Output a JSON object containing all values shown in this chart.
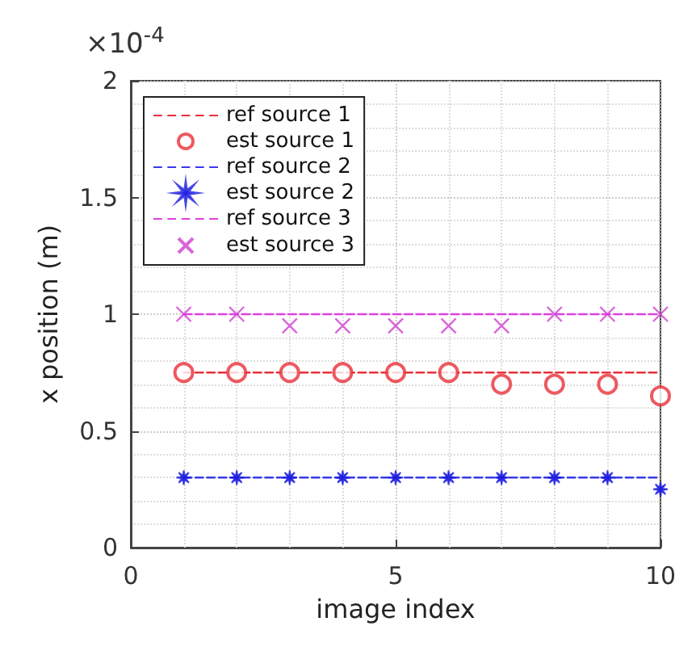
{
  "chart_data": {
    "type": "line",
    "xlabel": "image index",
    "ylabel": "x position (m)",
    "annotations": [
      "×10$^{-4}$"
    ],
    "xlim": [
      0,
      10
    ],
    "xticks": [
      0,
      5,
      10
    ],
    "ylim": [
      0,
      2
    ],
    "yticks": [
      0,
      0.5,
      1,
      1.5,
      2
    ],
    "grid": true,
    "legend": "top left",
    "series": [
      {
        "name": "ref source 1",
        "line_style": "dashed",
        "marker": "none",
        "color": "#e8303a",
        "x": [
          1,
          10
        ],
        "values": [
          0.75,
          0.75
        ]
      },
      {
        "name": "est source 1",
        "type": "scatter",
        "marker": "circle",
        "color": "#e8303a",
        "x": [
          1,
          2,
          3,
          4,
          5,
          6,
          7,
          8,
          9,
          10
        ],
        "values": [
          0.75,
          0.75,
          0.75,
          0.75,
          0.75,
          0.75,
          0.7,
          0.7,
          0.7,
          0.65
        ]
      },
      {
        "name": "ref source 2",
        "line_style": "dashed",
        "marker": "none",
        "color": "#3a3ae8",
        "x": [
          1,
          10
        ],
        "values": [
          0.3,
          0.3
        ]
      },
      {
        "name": "est source 2",
        "type": "scatter",
        "marker": "star",
        "color": "#1a1ae0",
        "x": [
          1,
          2,
          3,
          4,
          5,
          6,
          7,
          8,
          9,
          10
        ],
        "values": [
          0.3,
          0.3,
          0.3,
          0.3,
          0.3,
          0.3,
          0.3,
          0.3,
          0.3,
          0.25
        ]
      },
      {
        "name": "ref source 3",
        "line_style": "dashed",
        "marker": "none",
        "color": "#e040e0",
        "x": [
          1,
          10
        ],
        "values": [
          1,
          1
        ]
      },
      {
        "name": "est source 3",
        "type": "scatter",
        "marker": "cross",
        "color": "#d040d0",
        "x": [
          1,
          2,
          3,
          4,
          5,
          6,
          7,
          8,
          9,
          10
        ],
        "values": [
          1,
          1,
          0.95,
          0.95,
          0.95,
          0.95,
          0.95,
          1,
          1,
          1
        ]
      }
    ]
  }
}
